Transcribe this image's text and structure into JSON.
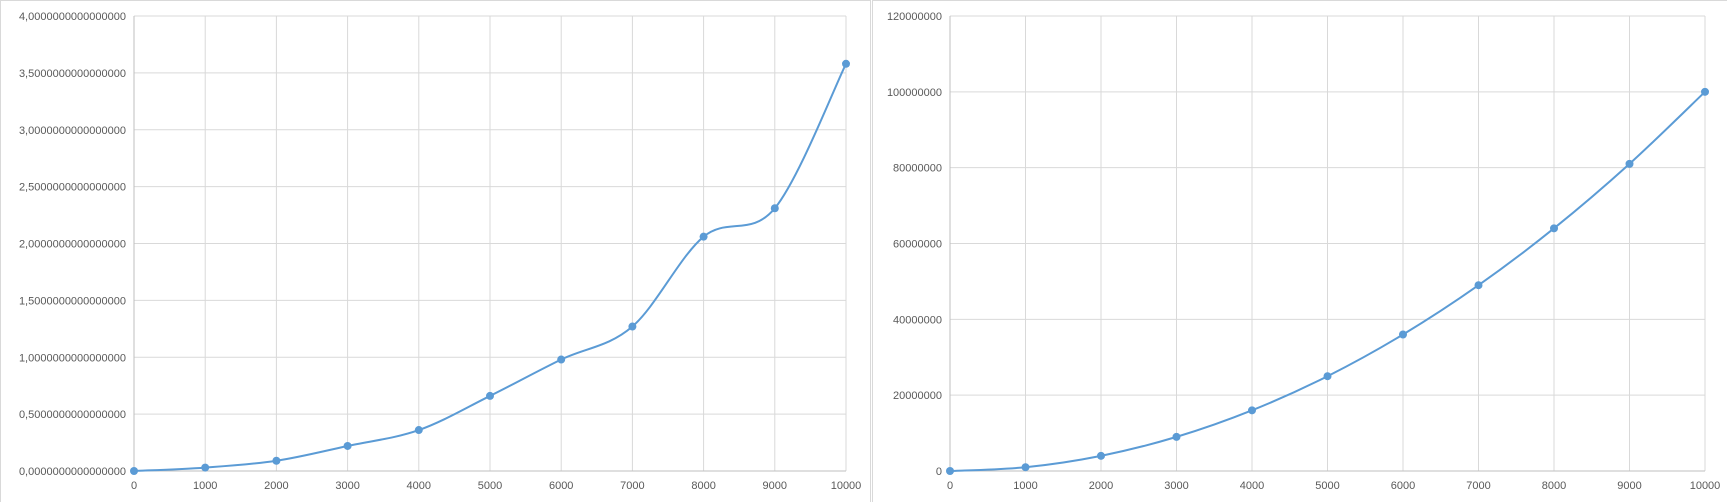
{
  "chart_data": [
    {
      "type": "line",
      "smooth": true,
      "x": [
        0,
        1000,
        2000,
        3000,
        4000,
        5000,
        6000,
        7000,
        8000,
        9000,
        10000
      ],
      "series": [
        {
          "values": [
            0.0,
            0.03,
            0.09,
            0.22,
            0.36,
            0.66,
            0.98,
            1.27,
            2.06,
            2.31,
            3.58
          ]
        }
      ],
      "xlim": [
        0,
        10000
      ],
      "ylim": [
        0,
        4
      ],
      "x_ticks": [
        "0",
        "1000",
        "2000",
        "3000",
        "4000",
        "5000",
        "6000",
        "7000",
        "8000",
        "9000",
        "10000"
      ],
      "y_ticks": [
        "0,0000000000000000",
        "0,5000000000000000",
        "1,0000000000000000",
        "1,5000000000000000",
        "2,0000000000000000",
        "2,5000000000000000",
        "3,0000000000000000",
        "3,5000000000000000",
        "4,0000000000000000"
      ],
      "grid": true,
      "legend": "none",
      "color": "#5b9bd5"
    },
    {
      "type": "line",
      "smooth": true,
      "x": [
        0,
        1000,
        2000,
        3000,
        4000,
        5000,
        6000,
        7000,
        8000,
        9000,
        10000
      ],
      "series": [
        {
          "values": [
            0,
            1000000,
            4000000,
            9000000,
            16000000,
            25000000,
            36000000,
            49000000,
            64000000,
            81000000,
            100000000
          ]
        }
      ],
      "xlim": [
        0,
        10000
      ],
      "ylim": [
        0,
        120000000
      ],
      "x_ticks": [
        "0",
        "1000",
        "2000",
        "3000",
        "4000",
        "5000",
        "6000",
        "7000",
        "8000",
        "9000",
        "10000"
      ],
      "y_ticks": [
        "0",
        "20000000",
        "40000000",
        "60000000",
        "80000000",
        "100000000",
        "120000000"
      ],
      "grid": true,
      "legend": "none",
      "color": "#5b9bd5"
    }
  ]
}
